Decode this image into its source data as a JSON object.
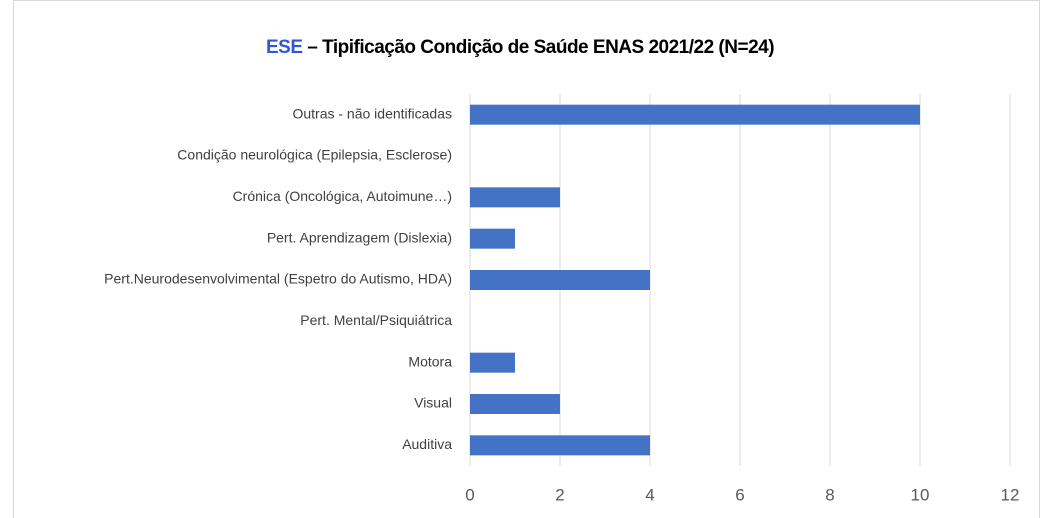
{
  "chart_data": {
    "type": "barh",
    "title_parts": [
      {
        "text": "ESE",
        "color": "#3355dd"
      },
      {
        "text": "– Tipificação Condição de Saúde ENAS  2021/22 (N=24)",
        "color": "#000000"
      }
    ],
    "categories": [
      "Outras - não identificadas",
      "Condição neurológica (Epilepsia, Esclerose)",
      "Crónica (Oncológica, Autoimune…)",
      "Pert. Aprendizagem (Dislexia)",
      "Pert.Neurodesenvolvimental (Espetro do Autismo, HDA)",
      "Pert. Mental/Psiquiátrica",
      "Motora",
      "Visual",
      "Auditiva"
    ],
    "values": [
      10,
      0,
      2,
      1,
      4,
      0,
      1,
      2,
      4
    ],
    "color": "#4472c4",
    "xlim": [
      0,
      12
    ],
    "xticks": [
      0,
      2,
      4,
      6,
      8,
      10,
      12
    ],
    "grid": true
  }
}
